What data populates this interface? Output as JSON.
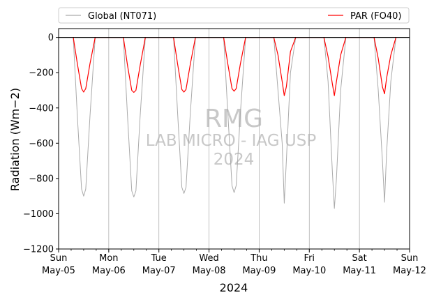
{
  "chart_data": {
    "type": "line",
    "xlabel": "2024",
    "ylabel": "Radiation (Wm−2)",
    "ylim": [
      -1200,
      50
    ],
    "xlim": [
      "2024-05-05T00:00",
      "2024-05-12T00:00"
    ],
    "yticks": [
      0,
      -200,
      -400,
      -600,
      -800,
      -1000,
      -1200
    ],
    "ytick_labels": [
      "0",
      "−200",
      "−400",
      "−600",
      "−800",
      "−1000",
      "−1200"
    ],
    "xticks": [
      {
        "weekday": "Sun",
        "date": "May-05"
      },
      {
        "weekday": "Mon",
        "date": "May-06"
      },
      {
        "weekday": "Tue",
        "date": "May-07"
      },
      {
        "weekday": "Wed",
        "date": "May-08"
      },
      {
        "weekday": "Thu",
        "date": "May-09"
      },
      {
        "weekday": "Fri",
        "date": "May-10"
      },
      {
        "weekday": "Sat",
        "date": "May-11"
      },
      {
        "weekday": "Sun",
        "date": "May-12"
      }
    ],
    "grid": "vertical lines at day ticks",
    "reference_line_y": 0,
    "legend_placement": "top, above plot",
    "watermark": {
      "line1": "RMG",
      "line2": "LAB MICRO - IAG USP",
      "line3": "2024"
    },
    "series": [
      {
        "name": "Global (NT071)",
        "color": "#aaaaaa",
        "x": [
          "2024-05-05T07:00",
          "2024-05-05T09:00",
          "2024-05-05T11:00",
          "2024-05-05T12:00",
          "2024-05-05T13:00",
          "2024-05-05T15:00",
          "2024-05-05T17:30",
          "2024-05-06T07:00",
          "2024-05-06T09:00",
          "2024-05-06T11:00",
          "2024-05-06T12:00",
          "2024-05-06T13:00",
          "2024-05-06T15:00",
          "2024-05-06T17:30",
          "2024-05-07T07:00",
          "2024-05-07T09:00",
          "2024-05-07T11:00",
          "2024-05-07T12:00",
          "2024-05-07T13:00",
          "2024-05-07T15:00",
          "2024-05-07T17:30",
          "2024-05-08T07:00",
          "2024-05-08T09:00",
          "2024-05-08T11:00",
          "2024-05-08T12:00",
          "2024-05-08T13:00",
          "2024-05-08T15:00",
          "2024-05-08T17:30",
          "2024-05-09T07:00",
          "2024-05-09T09:00",
          "2024-05-09T11:00",
          "2024-05-09T12:00",
          "2024-05-09T13:00",
          "2024-05-09T15:00",
          "2024-05-09T17:30",
          "2024-05-10T07:00",
          "2024-05-10T09:00",
          "2024-05-10T11:00",
          "2024-05-10T12:00",
          "2024-05-10T13:00",
          "2024-05-10T15:00",
          "2024-05-10T17:30",
          "2024-05-11T07:00",
          "2024-05-11T09:00",
          "2024-05-11T11:00",
          "2024-05-11T12:00",
          "2024-05-11T13:00",
          "2024-05-11T15:00",
          "2024-05-11T17:30"
        ],
        "y": [
          0,
          -450,
          -860,
          -900,
          -860,
          -450,
          0,
          0,
          -450,
          -870,
          -905,
          -870,
          -450,
          0,
          0,
          -440,
          -850,
          -885,
          -850,
          -440,
          0,
          0,
          -430,
          -840,
          -880,
          -840,
          -430,
          0,
          0,
          -300,
          -600,
          -940,
          -700,
          -200,
          0,
          0,
          -250,
          -750,
          -970,
          -800,
          -300,
          0,
          0,
          -300,
          -700,
          -935,
          -650,
          -250,
          0
        ]
      },
      {
        "name": "PAR (FO40)",
        "color": "#ff0000",
        "x": [
          "2024-05-05T07:00",
          "2024-05-05T09:00",
          "2024-05-05T11:00",
          "2024-05-05T12:00",
          "2024-05-05T13:00",
          "2024-05-05T15:00",
          "2024-05-05T17:30",
          "2024-05-06T07:00",
          "2024-05-06T09:00",
          "2024-05-06T11:00",
          "2024-05-06T12:00",
          "2024-05-06T13:00",
          "2024-05-06T15:00",
          "2024-05-06T17:30",
          "2024-05-07T07:00",
          "2024-05-07T09:00",
          "2024-05-07T11:00",
          "2024-05-07T12:00",
          "2024-05-07T13:00",
          "2024-05-07T15:00",
          "2024-05-07T17:30",
          "2024-05-08T07:00",
          "2024-05-08T09:00",
          "2024-05-08T11:00",
          "2024-05-08T12:00",
          "2024-05-08T13:00",
          "2024-05-08T15:00",
          "2024-05-08T17:30",
          "2024-05-09T07:00",
          "2024-05-09T09:00",
          "2024-05-09T11:00",
          "2024-05-09T12:00",
          "2024-05-09T13:00",
          "2024-05-09T15:00",
          "2024-05-09T17:30",
          "2024-05-10T07:00",
          "2024-05-10T09:00",
          "2024-05-10T11:00",
          "2024-05-10T12:00",
          "2024-05-10T13:00",
          "2024-05-10T15:00",
          "2024-05-10T17:30",
          "2024-05-11T07:00",
          "2024-05-11T09:00",
          "2024-05-11T11:00",
          "2024-05-11T12:00",
          "2024-05-11T13:00",
          "2024-05-11T15:00",
          "2024-05-11T17:30"
        ],
        "y": [
          0,
          -150,
          -290,
          -310,
          -290,
          -150,
          0,
          0,
          -160,
          -300,
          -312,
          -300,
          -160,
          0,
          0,
          -155,
          -295,
          -310,
          -295,
          -155,
          0,
          0,
          -150,
          -290,
          -305,
          -290,
          -150,
          0,
          0,
          -100,
          -250,
          -330,
          -280,
          -80,
          0,
          0,
          -110,
          -260,
          -330,
          -250,
          -100,
          0,
          0,
          -120,
          -280,
          -320,
          -230,
          -100,
          0
        ]
      }
    ]
  }
}
